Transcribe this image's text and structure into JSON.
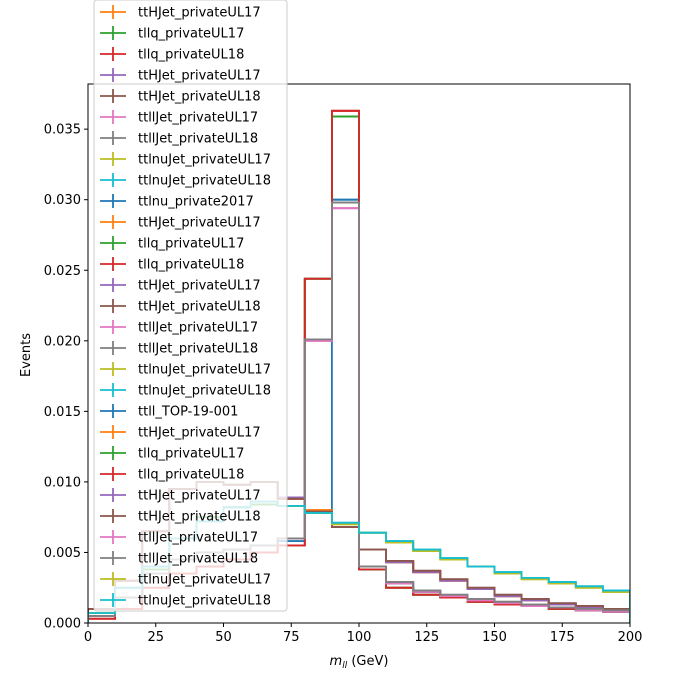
{
  "chart_data": {
    "type": "line",
    "drawstyle": "step-histogram",
    "xlabel_main": "m",
    "xlabel_sub": "ll",
    "xlabel_unit": " (GeV)",
    "ylabel": "Events",
    "xlim": [
      0,
      200
    ],
    "ylim": [
      0,
      0.0382
    ],
    "x_ticks": [
      "0",
      "25",
      "50",
      "75",
      "100",
      "125",
      "150",
      "175",
      "200"
    ],
    "y_ticks": [
      "0.000",
      "0.005",
      "0.010",
      "0.015",
      "0.020",
      "0.025",
      "0.030",
      "0.035"
    ],
    "bin_edges": [
      0,
      10,
      20,
      30,
      40,
      50,
      60,
      70,
      80,
      90,
      100,
      110,
      120,
      130,
      140,
      150,
      160,
      170,
      180,
      190,
      200
    ],
    "legend_placement": "upper-left",
    "series": [
      {
        "name": "ttHJet_privateUL17",
        "color": "#ff7f0e",
        "values": [
          0.001,
          0.003,
          0.0065,
          0.0095,
          0.01,
          0.0098,
          0.01,
          0.0088,
          0.008,
          0.0068,
          0.0052,
          0.0043,
          0.0036,
          0.003,
          0.0024,
          0.0019,
          0.0016,
          0.0013,
          0.0011,
          0.0009
        ]
      },
      {
        "name": "tllq_privateUL17",
        "color": "#2ca02c",
        "values": [
          0.0005,
          0.0018,
          0.0038,
          0.006,
          0.0075,
          0.0082,
          0.0084,
          0.0083,
          0.0244,
          0.0359,
          0.0038,
          0.0025,
          0.002,
          0.0018,
          0.0015,
          0.0013,
          0.0012,
          0.001,
          0.0009,
          0.0008
        ]
      },
      {
        "name": "tllq_privateUL18",
        "color": "#d62728",
        "values": [
          0.0003,
          0.001,
          0.0025,
          0.0035,
          0.004,
          0.0045,
          0.005,
          0.0055,
          0.0244,
          0.0363,
          0.0038,
          0.0025,
          0.002,
          0.0018,
          0.0015,
          0.0013,
          0.0012,
          0.001,
          0.0009,
          0.0008
        ]
      },
      {
        "name": "ttHJet_privateUL17",
        "color": "#9467bd",
        "values": [
          0.001,
          0.003,
          0.0065,
          0.0095,
          0.01,
          0.0098,
          0.01,
          0.0089,
          0.0079,
          0.0068,
          0.0052,
          0.0043,
          0.0036,
          0.003,
          0.0024,
          0.0019,
          0.0016,
          0.0013,
          0.0011,
          0.0009
        ]
      },
      {
        "name": "ttHJet_privateUL18",
        "color": "#8c564b",
        "values": [
          0.001,
          0.003,
          0.0065,
          0.0095,
          0.01,
          0.0098,
          0.01,
          0.0088,
          0.0079,
          0.0068,
          0.0052,
          0.0044,
          0.0037,
          0.0031,
          0.0025,
          0.002,
          0.0017,
          0.0014,
          0.0012,
          0.001
        ]
      },
      {
        "name": "ttllJet_privateUL17",
        "color": "#e377c2",
        "values": [
          0.0005,
          0.0018,
          0.0035,
          0.0045,
          0.005,
          0.0052,
          0.0055,
          0.006,
          0.02,
          0.0294,
          0.004,
          0.0028,
          0.0022,
          0.0019,
          0.0016,
          0.0014,
          0.0012,
          0.0011,
          0.0009,
          0.0008
        ]
      },
      {
        "name": "ttllJet_privateUL18",
        "color": "#7f7f7f",
        "values": [
          0.0005,
          0.0018,
          0.0035,
          0.0045,
          0.005,
          0.0052,
          0.0055,
          0.006,
          0.0201,
          0.0298,
          0.004,
          0.0029,
          0.0023,
          0.002,
          0.0017,
          0.0015,
          0.0013,
          0.0011,
          0.001,
          0.0009
        ]
      },
      {
        "name": "ttlnuJet_privateUL17",
        "color": "#bcbd22",
        "values": [
          0.0007,
          0.0025,
          0.004,
          0.006,
          0.0072,
          0.0082,
          0.0086,
          0.0083,
          0.0078,
          0.007,
          0.0064,
          0.0057,
          0.0051,
          0.0045,
          0.004,
          0.0035,
          0.0031,
          0.0028,
          0.0025,
          0.0022
        ]
      },
      {
        "name": "ttlnuJet_privateUL18",
        "color": "#17becf",
        "values": [
          0.0007,
          0.0025,
          0.004,
          0.006,
          0.0072,
          0.0082,
          0.0086,
          0.0083,
          0.0078,
          0.0071,
          0.0064,
          0.0058,
          0.0052,
          0.0046,
          0.004,
          0.0036,
          0.0032,
          0.0029,
          0.0026,
          0.0023
        ]
      },
      {
        "name": "ttlnu_private2017",
        "color": "#1f77b4",
        "values": [
          0.0005,
          0.0018,
          0.0035,
          0.0045,
          0.005,
          0.0052,
          0.0055,
          0.0058,
          0.0201,
          0.03,
          0.004,
          0.0028,
          0.0022,
          0.0019,
          0.0016,
          0.0014,
          0.0012,
          0.0011,
          0.0009,
          0.0008
        ]
      },
      {
        "name": "ttHJet_privateUL17",
        "color": "#ff7f0e",
        "values": [
          0.001,
          0.003,
          0.0065,
          0.0095,
          0.01,
          0.0098,
          0.01,
          0.0088,
          0.008,
          0.0068,
          0.0052,
          0.0043,
          0.0036,
          0.003,
          0.0024,
          0.0019,
          0.0016,
          0.0013,
          0.0011,
          0.0009
        ]
      },
      {
        "name": "tllq_privateUL17",
        "color": "#2ca02c",
        "values": [
          0.0005,
          0.0018,
          0.0038,
          0.006,
          0.0075,
          0.0082,
          0.0084,
          0.0083,
          0.0244,
          0.0359,
          0.0038,
          0.0025,
          0.002,
          0.0018,
          0.0015,
          0.0013,
          0.0012,
          0.001,
          0.0009,
          0.0008
        ]
      },
      {
        "name": "tllq_privateUL18",
        "color": "#d62728",
        "values": [
          0.0003,
          0.001,
          0.0025,
          0.0035,
          0.004,
          0.0045,
          0.005,
          0.0055,
          0.0244,
          0.0363,
          0.0038,
          0.0025,
          0.002,
          0.0018,
          0.0015,
          0.0013,
          0.0012,
          0.001,
          0.0009,
          0.0008
        ]
      },
      {
        "name": "ttHJet_privateUL17",
        "color": "#9467bd",
        "values": [
          0.001,
          0.003,
          0.0065,
          0.0095,
          0.01,
          0.0098,
          0.01,
          0.0089,
          0.0079,
          0.0068,
          0.0052,
          0.0043,
          0.0036,
          0.003,
          0.0024,
          0.0019,
          0.0016,
          0.0013,
          0.0011,
          0.0009
        ]
      },
      {
        "name": "ttHJet_privateUL18",
        "color": "#8c564b",
        "values": [
          0.001,
          0.003,
          0.0065,
          0.0095,
          0.01,
          0.0098,
          0.01,
          0.0088,
          0.0079,
          0.0068,
          0.0052,
          0.0044,
          0.0037,
          0.0031,
          0.0025,
          0.002,
          0.0017,
          0.0014,
          0.0012,
          0.001
        ]
      },
      {
        "name": "ttllJet_privateUL17",
        "color": "#e377c2",
        "values": [
          0.0005,
          0.0018,
          0.0035,
          0.0045,
          0.005,
          0.0052,
          0.0055,
          0.006,
          0.02,
          0.0294,
          0.004,
          0.0028,
          0.0022,
          0.0019,
          0.0016,
          0.0014,
          0.0012,
          0.0011,
          0.0009,
          0.0008
        ]
      },
      {
        "name": "ttllJet_privateUL18",
        "color": "#7f7f7f",
        "values": [
          0.0005,
          0.0018,
          0.0035,
          0.0045,
          0.005,
          0.0052,
          0.0055,
          0.006,
          0.0201,
          0.0298,
          0.004,
          0.0029,
          0.0023,
          0.002,
          0.0017,
          0.0015,
          0.0013,
          0.0011,
          0.001,
          0.0009
        ]
      },
      {
        "name": "ttlnuJet_privateUL17",
        "color": "#bcbd22",
        "values": [
          0.0007,
          0.0025,
          0.004,
          0.006,
          0.0072,
          0.0082,
          0.0086,
          0.0083,
          0.0078,
          0.007,
          0.0064,
          0.0057,
          0.0051,
          0.0045,
          0.004,
          0.0035,
          0.0031,
          0.0028,
          0.0025,
          0.0022
        ]
      },
      {
        "name": "ttlnuJet_privateUL18",
        "color": "#17becf",
        "values": [
          0.0007,
          0.0025,
          0.004,
          0.006,
          0.0072,
          0.0082,
          0.0086,
          0.0083,
          0.0078,
          0.0071,
          0.0064,
          0.0058,
          0.0052,
          0.0046,
          0.004,
          0.0036,
          0.0032,
          0.0029,
          0.0026,
          0.0023
        ]
      },
      {
        "name": "ttll_TOP-19-001",
        "color": "#1f77b4",
        "values": [
          0.0005,
          0.0018,
          0.0035,
          0.0045,
          0.005,
          0.0052,
          0.0055,
          0.0058,
          0.0078,
          0.03,
          0.004,
          0.0028,
          0.0022,
          0.0019,
          0.0016,
          0.0014,
          0.0012,
          0.0011,
          0.0009,
          0.0008
        ]
      },
      {
        "name": "ttHJet_privateUL17",
        "color": "#ff7f0e",
        "values": [
          0.001,
          0.003,
          0.0065,
          0.0095,
          0.01,
          0.0098,
          0.01,
          0.0088,
          0.008,
          0.0068,
          0.0052,
          0.0043,
          0.0036,
          0.003,
          0.0024,
          0.0019,
          0.0016,
          0.0013,
          0.0011,
          0.0009
        ]
      },
      {
        "name": "tllq_privateUL17",
        "color": "#2ca02c",
        "values": [
          0.0005,
          0.0018,
          0.0038,
          0.006,
          0.0075,
          0.0082,
          0.0084,
          0.0083,
          0.0244,
          0.0359,
          0.0038,
          0.0025,
          0.002,
          0.0018,
          0.0015,
          0.0013,
          0.0012,
          0.001,
          0.0009,
          0.0008
        ]
      },
      {
        "name": "tllq_privateUL18",
        "color": "#d62728",
        "values": [
          0.0003,
          0.001,
          0.0025,
          0.0035,
          0.004,
          0.0045,
          0.005,
          0.0055,
          0.0244,
          0.0363,
          0.0038,
          0.0025,
          0.002,
          0.0018,
          0.0015,
          0.0013,
          0.0012,
          0.001,
          0.0009,
          0.0008
        ]
      },
      {
        "name": "ttHJet_privateUL17",
        "color": "#9467bd",
        "values": [
          0.001,
          0.003,
          0.0065,
          0.0095,
          0.01,
          0.0098,
          0.01,
          0.0089,
          0.0079,
          0.0068,
          0.0052,
          0.0043,
          0.0036,
          0.003,
          0.0024,
          0.0019,
          0.0016,
          0.0013,
          0.0011,
          0.0009
        ]
      },
      {
        "name": "ttHJet_privateUL18",
        "color": "#8c564b",
        "values": [
          0.001,
          0.003,
          0.0065,
          0.0095,
          0.01,
          0.0098,
          0.01,
          0.0088,
          0.0079,
          0.0068,
          0.0052,
          0.0044,
          0.0037,
          0.0031,
          0.0025,
          0.002,
          0.0017,
          0.0014,
          0.0012,
          0.001
        ]
      },
      {
        "name": "ttllJet_privateUL17",
        "color": "#e377c2",
        "values": [
          0.0005,
          0.0018,
          0.0035,
          0.0045,
          0.005,
          0.0052,
          0.0055,
          0.006,
          0.02,
          0.0294,
          0.004,
          0.0028,
          0.0022,
          0.0019,
          0.0016,
          0.0014,
          0.0012,
          0.0011,
          0.0009,
          0.0008
        ]
      },
      {
        "name": "ttllJet_privateUL18",
        "color": "#7f7f7f",
        "values": [
          0.0005,
          0.0018,
          0.0035,
          0.0045,
          0.005,
          0.0052,
          0.0055,
          0.006,
          0.0201,
          0.0298,
          0.004,
          0.0029,
          0.0023,
          0.002,
          0.0017,
          0.0015,
          0.0013,
          0.0011,
          0.001,
          0.0009
        ]
      },
      {
        "name": "ttlnuJet_privateUL17",
        "color": "#bcbd22",
        "values": [
          0.0007,
          0.0025,
          0.004,
          0.006,
          0.0072,
          0.0082,
          0.0086,
          0.0083,
          0.0078,
          0.007,
          0.0064,
          0.0057,
          0.0051,
          0.0045,
          0.004,
          0.0035,
          0.0031,
          0.0028,
          0.0025,
          0.0022
        ]
      },
      {
        "name": "ttlnuJet_privateUL18",
        "color": "#17becf",
        "values": [
          0.0007,
          0.0025,
          0.004,
          0.006,
          0.0072,
          0.0082,
          0.0086,
          0.0083,
          0.0078,
          0.0071,
          0.0064,
          0.0058,
          0.0052,
          0.0046,
          0.004,
          0.0036,
          0.0032,
          0.0029,
          0.0026,
          0.0023
        ]
      }
    ]
  }
}
